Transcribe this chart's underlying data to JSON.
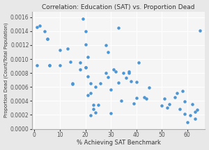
{
  "title": "Correlation: Education (SAT) vs. Proportion Dead",
  "xlabel": "% Achieving SAT Benchmark",
  "ylabel": "Proportion Dead (Count/Total Population)",
  "xlim": [
    -1,
    67
  ],
  "ylim": [
    0,
    0.00168
  ],
  "dot_color": "#4d96d4",
  "dot_size": 5,
  "x": [
    1,
    1,
    2,
    4,
    5,
    5,
    6,
    6,
    10,
    10,
    13,
    14,
    15,
    15,
    18,
    18,
    19,
    20,
    20,
    20,
    20,
    21,
    21,
    21,
    22,
    22,
    22,
    23,
    23,
    24,
    24,
    25,
    26,
    28,
    28,
    29,
    29,
    30,
    30,
    31,
    32,
    33,
    33,
    34,
    35,
    36,
    37,
    37,
    38,
    39,
    40,
    40,
    41,
    43,
    44,
    45,
    50,
    51,
    52,
    53,
    55,
    56,
    57,
    58,
    59,
    59,
    60,
    61,
    62,
    63,
    63,
    64,
    65
  ],
  "y": [
    0.00146,
    0.00091,
    0.00148,
    0.0014,
    0.00129,
    0.00129,
    0.00091,
    0.00091,
    0.00113,
    0.00091,
    0.00115,
    0.00096,
    0.00064,
    0.00065,
    0.00085,
    0.00095,
    0.00158,
    0.00088,
    0.00088,
    0.00121,
    0.0014,
    0.00103,
    0.00075,
    0.00048,
    0.00051,
    0.00065,
    0.00019,
    0.00028,
    0.00034,
    0.0006,
    0.00023,
    0.00034,
    0.00065,
    0.0012,
    0.0008,
    0.0011,
    0.00074,
    0.00056,
    0.00022,
    0.00085,
    0.00082,
    0.00145,
    0.00066,
    0.0004,
    0.0008,
    0.00073,
    0.0008,
    0.00082,
    0.00068,
    0.00036,
    0.00044,
    0.00067,
    0.00095,
    0.00045,
    0.00043,
    0.00059,
    0.00033,
    0.00043,
    0.0003,
    0.00035,
    0.00045,
    0.00051,
    0.00028,
    0.00054,
    0.00021,
    0.00039,
    9e-05,
    0.00019,
    0.00035,
    0.00014,
    0.00024,
    0.00027,
    0.00141
  ],
  "bg_color": "#e8e8e8",
  "plot_bg_color": "#f5f5f5"
}
